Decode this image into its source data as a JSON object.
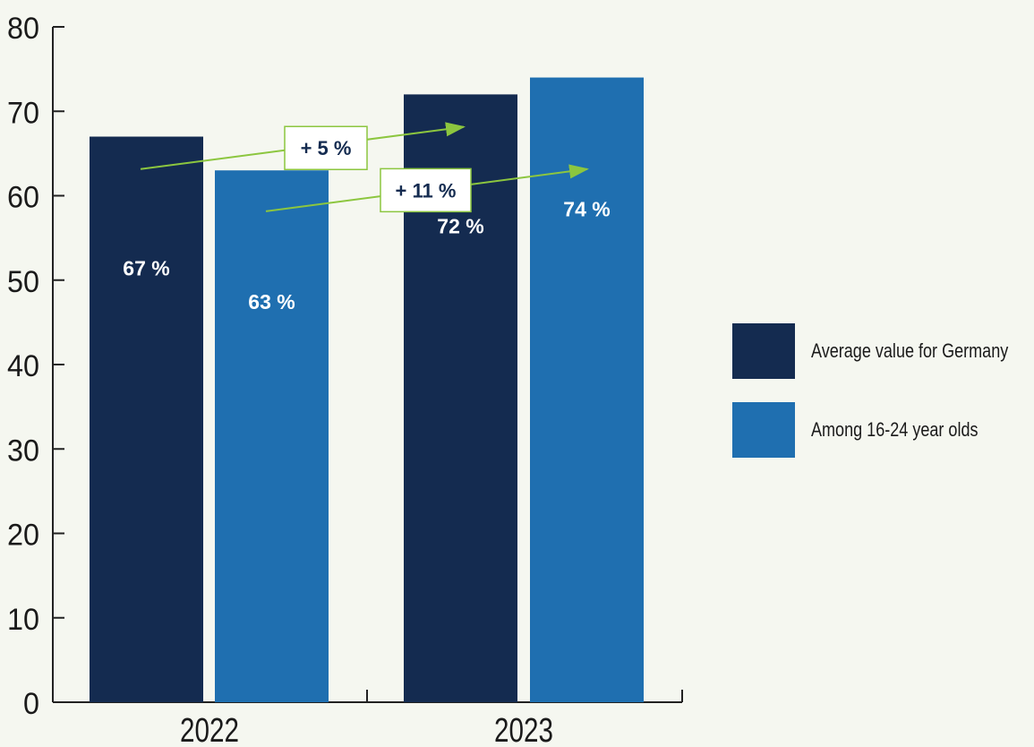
{
  "chart_data": {
    "type": "bar",
    "categories": [
      "2022",
      "2023"
    ],
    "series": [
      {
        "name": "Average value for Germany",
        "color": "#142b50",
        "values": [
          67,
          72
        ],
        "labels": [
          "67 %",
          "72 %"
        ]
      },
      {
        "name": "Among 16-24 year olds",
        "color": "#1f6fb0",
        "values": [
          63,
          74
        ],
        "labels": [
          "63 %",
          "74 %"
        ]
      }
    ],
    "ylim": [
      0,
      80
    ],
    "yticks": [
      "0",
      "10",
      "20",
      "30",
      "40",
      "50",
      "60",
      "70",
      "80"
    ],
    "grid": false,
    "legend_position": "right",
    "annotations": [
      {
        "text": "+ 5 %",
        "from": {
          "x": "2022",
          "series": 0,
          "y": 64
        },
        "to": {
          "x": "2023",
          "series": 0,
          "y": 69
        }
      },
      {
        "text": "+ 11 %",
        "from": {
          "x": "2022",
          "series": 1,
          "y": 59
        },
        "to": {
          "x": "2023",
          "series": 1,
          "y": 64
        }
      }
    ],
    "annotation_color": "#8cc63f"
  }
}
